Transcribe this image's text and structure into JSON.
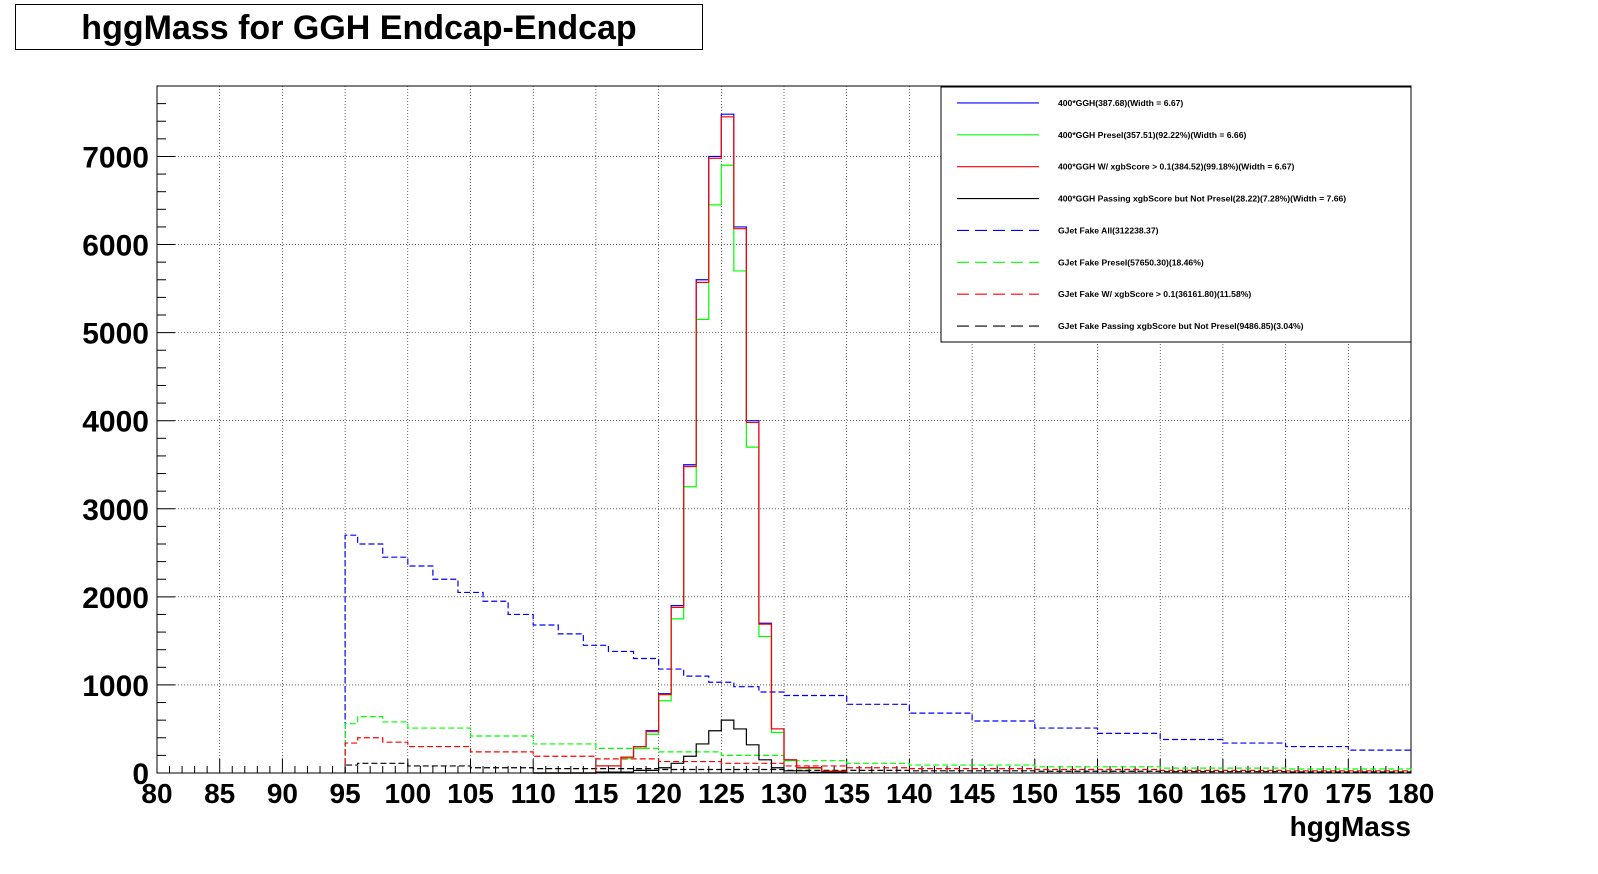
{
  "title": "hggMass for GGH Endcap-Endcap",
  "chart_data": {
    "type": "line",
    "title": "hggMass for GGH Endcap-Endcap",
    "xlabel": "hggMass",
    "ylabel": "",
    "xlim": [
      80,
      180
    ],
    "ylim": [
      0,
      7800
    ],
    "x_ticks": [
      "80",
      "85",
      "90",
      "95",
      "100",
      "105",
      "110",
      "115",
      "120",
      "125",
      "130",
      "135",
      "140",
      "145",
      "150",
      "155",
      "160",
      "165",
      "170",
      "175",
      "180"
    ],
    "y_ticks": [
      "0",
      "1000",
      "2000",
      "3000",
      "4000",
      "5000",
      "6000",
      "7000"
    ],
    "grid": true,
    "legend_position": "top-right",
    "legend": [
      {
        "label": "400*GGH(387.68)(Width = 6.67)",
        "color": "#0000ff",
        "style": "solid"
      },
      {
        "label": "400*GGH Presel(357.51)(92.22%)(Width = 6.66)",
        "color": "#00ff00",
        "style": "solid"
      },
      {
        "label": "400*GGH W/ xgbScore > 0.1(384.52)(99.18%)(Width = 6.67)",
        "color": "#ff0000",
        "style": "solid"
      },
      {
        "label": "400*GGH Passing xgbScore but Not Presel(28.22)(7.28%)(Width = 7.66)",
        "color": "#000000",
        "style": "solid"
      },
      {
        "label": "GJet Fake All(312238.37)",
        "color": "#0000ff",
        "style": "dashed"
      },
      {
        "label": "GJet Fake Presel(57650.30)(18.46%)",
        "color": "#00ff00",
        "style": "dashed"
      },
      {
        "label": "GJet Fake W/ xgbScore > 0.1(36161.80)(11.58%)",
        "color": "#ff0000",
        "style": "dashed"
      },
      {
        "label": "GJet Fake Passing xgbScore but Not Presel(9486.85)(3.04%)",
        "color": "#000000",
        "style": "dashed"
      }
    ],
    "series": [
      {
        "name": "GJet Fake All(312238.37)",
        "color": "#0000ff",
        "dashed": true,
        "x": [
          95,
          96,
          98,
          100,
          102,
          104,
          106,
          108,
          110,
          112,
          114,
          116,
          118,
          120,
          122,
          124,
          126,
          128,
          130,
          135,
          140,
          145,
          150,
          155,
          160,
          165,
          170,
          175,
          180
        ],
        "y": [
          2700,
          2600,
          2450,
          2350,
          2200,
          2050,
          1950,
          1800,
          1680,
          1580,
          1450,
          1380,
          1300,
          1180,
          1100,
          1030,
          980,
          920,
          880,
          780,
          680,
          590,
          510,
          450,
          380,
          340,
          300,
          260,
          220
        ]
      },
      {
        "name": "GJet Fake Presel(57650.30)(18.46%)",
        "color": "#00ff00",
        "dashed": true,
        "x": [
          95,
          96,
          98,
          100,
          105,
          110,
          115,
          120,
          125,
          130,
          135,
          140,
          150,
          160,
          170,
          180
        ],
        "y": [
          560,
          640,
          580,
          510,
          420,
          330,
          280,
          240,
          200,
          140,
          110,
          90,
          70,
          55,
          45,
          35
        ]
      },
      {
        "name": "GJet Fake W/ xgbScore > 0.1(36161.80)(11.58%)",
        "color": "#ff0000",
        "dashed": true,
        "x": [
          95,
          96,
          98,
          100,
          105,
          110,
          115,
          120,
          125,
          130,
          135,
          140,
          150,
          160,
          170,
          180
        ],
        "y": [
          340,
          400,
          350,
          300,
          240,
          190,
          160,
          130,
          110,
          80,
          60,
          50,
          40,
          30,
          25,
          20
        ]
      },
      {
        "name": "GJet Fake Passing xgbScore but Not Presel(9486.85)(3.04%)",
        "color": "#000000",
        "dashed": true,
        "x": [
          95,
          96,
          100,
          105,
          110,
          120,
          130,
          140,
          150,
          160,
          170,
          180
        ],
        "y": [
          90,
          110,
          80,
          60,
          50,
          40,
          30,
          25,
          20,
          15,
          12,
          10
        ]
      },
      {
        "name": "400*GGH(387.68)(Width = 6.67)",
        "color": "#0000ff",
        "dashed": false,
        "x": [
          110,
          115,
          117,
          118,
          119,
          120,
          121,
          122,
          123,
          124,
          125,
          126,
          127,
          128,
          129,
          130,
          131,
          133,
          135
        ],
        "y": [
          0,
          80,
          180,
          300,
          480,
          900,
          1900,
          3500,
          5600,
          7000,
          7480,
          6200,
          4000,
          1700,
          500,
          150,
          60,
          20,
          0
        ]
      },
      {
        "name": "400*GGH Presel(357.51)(92.22%)(Width = 6.66)",
        "color": "#00ff00",
        "dashed": false,
        "x": [
          110,
          115,
          117,
          118,
          119,
          120,
          121,
          122,
          123,
          124,
          125,
          126,
          127,
          128,
          129,
          130,
          131,
          133,
          135
        ],
        "y": [
          0,
          80,
          170,
          280,
          440,
          820,
          1750,
          3250,
          5150,
          6450,
          6900,
          5700,
          3700,
          1550,
          460,
          140,
          55,
          20,
          0
        ]
      },
      {
        "name": "400*GGH W/ xgbScore > 0.1(384.52)(99.18%)(Width = 6.67)",
        "color": "#ff0000",
        "dashed": false,
        "x": [
          110,
          115,
          117,
          118,
          119,
          120,
          121,
          122,
          123,
          124,
          125,
          126,
          127,
          128,
          129,
          130,
          131,
          133,
          135
        ],
        "y": [
          0,
          80,
          180,
          300,
          470,
          890,
          1880,
          3480,
          5570,
          6980,
          7450,
          6180,
          3980,
          1690,
          500,
          150,
          60,
          20,
          0
        ]
      },
      {
        "name": "400*GGH Passing xgbScore but Not Presel(28.22)(7.28%)(Width = 7.66)",
        "color": "#000000",
        "dashed": false,
        "x": [
          110,
          115,
          118,
          120,
          121,
          122,
          123,
          124,
          125,
          126,
          127,
          128,
          129,
          130,
          132,
          135
        ],
        "y": [
          0,
          10,
          30,
          60,
          110,
          190,
          330,
          480,
          600,
          500,
          320,
          150,
          60,
          25,
          8,
          0
        ]
      }
    ]
  }
}
